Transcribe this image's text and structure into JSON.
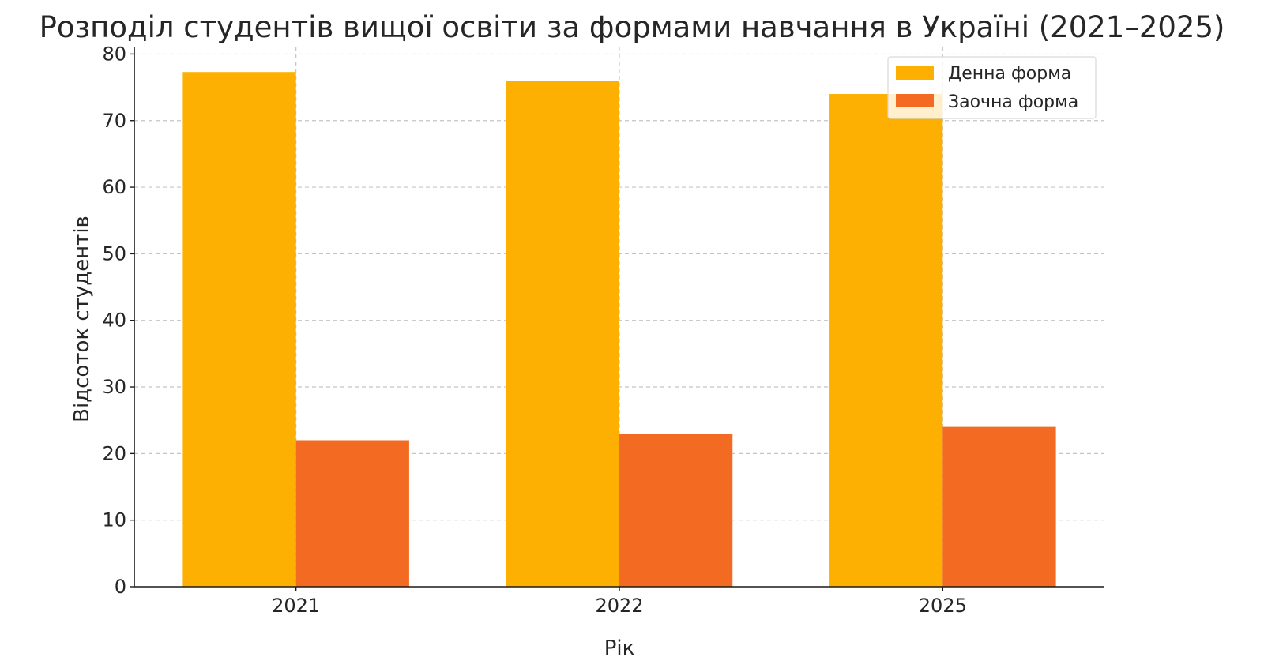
{
  "chart_data": {
    "type": "bar",
    "title": "Розподіл студентів вищої освіти за формами навчання в Україні (2021–2025)",
    "xlabel": "Рік",
    "ylabel": "Відсоток студентів",
    "categories": [
      "2021",
      "2022",
      "2025"
    ],
    "series": [
      {
        "name": "Денна форма",
        "values": [
          77.3,
          76.0,
          74.0
        ],
        "color": "#FDB002"
      },
      {
        "name": "Заочна форма",
        "values": [
          22.0,
          23.0,
          24.0
        ],
        "color": "#F36B22"
      }
    ],
    "ylim": [
      0,
      81
    ],
    "yticks": [
      0,
      10,
      20,
      30,
      40,
      50,
      60,
      70,
      80
    ],
    "grid": true,
    "legend_position": "top-right"
  }
}
